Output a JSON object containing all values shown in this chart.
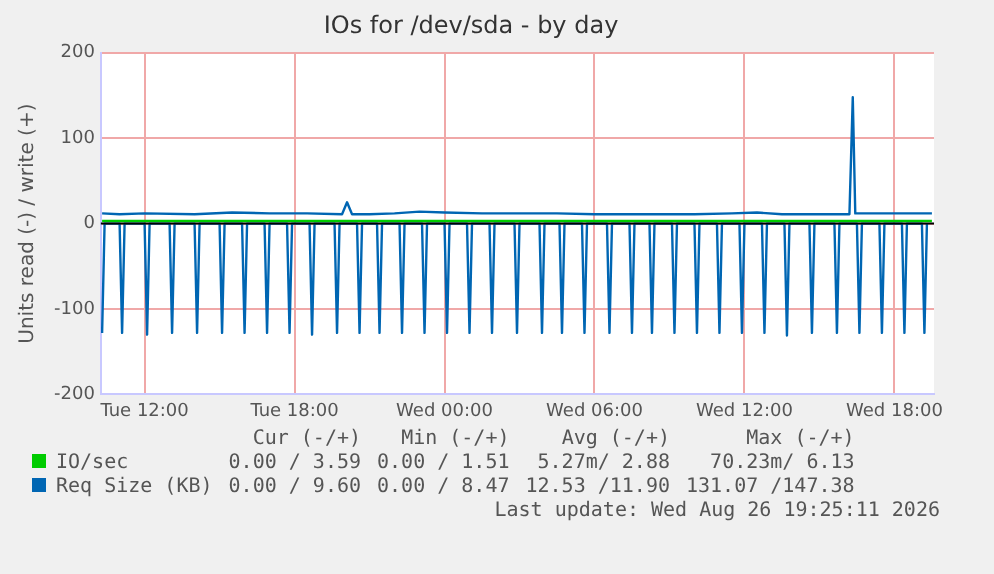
{
  "chart_data": {
    "type": "line",
    "title": "IOs for /dev/sda - by day",
    "ylabel": "Units read (-) / write (+)",
    "xlim": [
      "2026-08-25T10:15",
      "2026-08-26T19:35"
    ],
    "xticks": [
      {
        "value": "2026-08-25T12:00",
        "label": "Tue 12:00"
      },
      {
        "value": "2026-08-25T18:00",
        "label": "Tue 18:00"
      },
      {
        "value": "2026-08-26T00:00",
        "label": "Wed 00:00"
      },
      {
        "value": "2026-08-26T06:00",
        "label": "Wed 06:00"
      },
      {
        "value": "2026-08-26T12:00",
        "label": "Wed 12:00"
      },
      {
        "value": "2026-08-26T18:00",
        "label": "Wed 18:00"
      }
    ],
    "ylim": [
      -200,
      200
    ],
    "yticks": [
      -200,
      -100,
      0,
      100,
      200
    ],
    "grid": true,
    "legend": "bottom",
    "marker": "none",
    "line_style": "solid",
    "ref_lines": [
      {
        "axis": "y",
        "value": 0,
        "color": "#000000"
      }
    ],
    "series": [
      {
        "name": "IO/sec",
        "color": "#00cc00",
        "x": [
          "2026-08-25T10:18",
          "2026-08-25T15:00",
          "2026-08-25T20:00",
          "2026-08-26T01:00",
          "2026-08-26T06:00",
          "2026-08-26T11:00",
          "2026-08-26T16:00",
          "2026-08-26T19:30"
        ],
        "values": [
          3,
          3,
          3,
          3,
          3,
          3,
          3,
          3
        ]
      },
      {
        "color": "#0066b3",
        "x": [
          "2026-08-25T10:18",
          "2026-08-25T10:24",
          "2026-08-25T11:00",
          "2026-08-25T11:06",
          "2026-08-25T11:12",
          "2026-08-25T12:00",
          "2026-08-25T12:06",
          "2026-08-25T12:12",
          "2026-08-25T13:00",
          "2026-08-25T13:06",
          "2026-08-25T13:12",
          "2026-08-25T14:00",
          "2026-08-25T14:06",
          "2026-08-25T14:12",
          "2026-08-25T15:00",
          "2026-08-25T15:06",
          "2026-08-25T15:12",
          "2026-08-25T15:54",
          "2026-08-25T16:00",
          "2026-08-25T16:06",
          "2026-08-25T16:48",
          "2026-08-25T16:54",
          "2026-08-25T17:00",
          "2026-08-25T17:42",
          "2026-08-25T17:48",
          "2026-08-25T17:54",
          "2026-08-25T18:36",
          "2026-08-25T18:42",
          "2026-08-25T18:48",
          "2026-08-25T19:36",
          "2026-08-25T19:42",
          "2026-08-25T19:48",
          "2026-08-25T20:30",
          "2026-08-25T20:36",
          "2026-08-25T20:42",
          "2026-08-25T21:18",
          "2026-08-25T21:24",
          "2026-08-25T21:30",
          "2026-08-25T22:12",
          "2026-08-25T22:18",
          "2026-08-25T22:24",
          "2026-08-25T23:06",
          "2026-08-25T23:12",
          "2026-08-25T23:18",
          "2026-08-26T00:00",
          "2026-08-26T00:06",
          "2026-08-26T00:12",
          "2026-08-26T00:54",
          "2026-08-26T01:00",
          "2026-08-26T01:06",
          "2026-08-26T01:48",
          "2026-08-26T01:54",
          "2026-08-26T02:00",
          "2026-08-26T02:48",
          "2026-08-26T02:54",
          "2026-08-26T03:00",
          "2026-08-26T03:48",
          "2026-08-26T03:54",
          "2026-08-26T04:00",
          "2026-08-26T04:36",
          "2026-08-26T04:42",
          "2026-08-26T04:48",
          "2026-08-26T05:30",
          "2026-08-26T05:36",
          "2026-08-26T05:42",
          "2026-08-26T06:30",
          "2026-08-26T06:36",
          "2026-08-26T06:42",
          "2026-08-26T07:24",
          "2026-08-26T07:30",
          "2026-08-26T07:36",
          "2026-08-26T08:12",
          "2026-08-26T08:18",
          "2026-08-26T08:24",
          "2026-08-26T09:06",
          "2026-08-26T09:12",
          "2026-08-26T09:18",
          "2026-08-26T10:00",
          "2026-08-26T10:06",
          "2026-08-26T10:12",
          "2026-08-26T10:54",
          "2026-08-26T11:00",
          "2026-08-26T11:06",
          "2026-08-26T11:48",
          "2026-08-26T11:54",
          "2026-08-26T12:00",
          "2026-08-26T12:42",
          "2026-08-26T12:48",
          "2026-08-26T12:54",
          "2026-08-26T13:36",
          "2026-08-26T13:42",
          "2026-08-26T13:48",
          "2026-08-26T14:36",
          "2026-08-26T14:42",
          "2026-08-26T14:48",
          "2026-08-26T15:36",
          "2026-08-26T15:42",
          "2026-08-26T15:48",
          "2026-08-26T16:30",
          "2026-08-26T16:36",
          "2026-08-26T16:42",
          "2026-08-26T17:24",
          "2026-08-26T17:30",
          "2026-08-26T17:36",
          "2026-08-26T18:18",
          "2026-08-26T18:24",
          "2026-08-26T18:30",
          "2026-08-26T19:06",
          "2026-08-26T19:12",
          "2026-08-26T19:18"
        ],
        "values": [
          -128,
          0,
          0,
          -128,
          0,
          0,
          -130,
          0,
          0,
          -128,
          0,
          0,
          -128,
          0,
          0,
          -128,
          0,
          0,
          -128,
          0,
          0,
          -128,
          0,
          0,
          -128,
          0,
          0,
          -130,
          0,
          0,
          -128,
          0,
          0,
          -128,
          0,
          0,
          -128,
          0,
          0,
          -128,
          0,
          0,
          -128,
          0,
          0,
          -128,
          0,
          0,
          -128,
          0,
          0,
          -128,
          0,
          0,
          -128,
          0,
          0,
          -128,
          0,
          0,
          -128,
          0,
          0,
          -128,
          0,
          0,
          -128,
          0,
          0,
          -128,
          0,
          0,
          -128,
          0,
          0,
          -128,
          0,
          0,
          -128,
          0,
          0,
          -128,
          0,
          0,
          -128,
          0,
          0,
          -128,
          0,
          0,
          -131,
          0,
          0,
          -128,
          0,
          0,
          -128,
          0,
          0,
          -128,
          0,
          0,
          -128,
          0,
          0,
          -128,
          0,
          0,
          -128,
          0
        ]
      },
      {
        "name": "Req Size (KB)",
        "color": "#0066b3",
        "x": [
          "2026-08-25T10:18",
          "2026-08-25T11:00",
          "2026-08-25T12:00",
          "2026-08-25T14:00",
          "2026-08-25T15:30",
          "2026-08-25T17:00",
          "2026-08-25T18:30",
          "2026-08-25T19:54",
          "2026-08-25T20:06",
          "2026-08-25T20:18",
          "2026-08-25T21:00",
          "2026-08-25T22:00",
          "2026-08-25T23:00",
          "2026-08-26T00:00",
          "2026-08-26T01:30",
          "2026-08-26T03:00",
          "2026-08-26T04:30",
          "2026-08-26T06:00",
          "2026-08-26T08:00",
          "2026-08-26T10:00",
          "2026-08-26T11:30",
          "2026-08-26T12:30",
          "2026-08-26T13:30",
          "2026-08-26T15:00",
          "2026-08-26T16:12",
          "2026-08-26T16:20",
          "2026-08-26T16:26",
          "2026-08-26T17:30",
          "2026-08-26T19:30"
        ],
        "values": [
          12,
          11,
          12,
          11,
          13,
          12,
          12,
          11,
          25,
          11,
          11,
          12,
          14,
          13,
          12,
          12,
          12,
          11,
          11,
          11,
          12,
          13,
          11,
          11,
          11,
          148,
          12,
          12,
          12
        ]
      }
    ],
    "annotations": [
      "Cur (-/+)",
      "Min (-/+)",
      "Avg (-/+)",
      "Max (-/+)",
      "0.00 / 3.59",
      "0.00 / 1.51",
      "5.27m/ 2.88",
      "70.23m/ 6.13",
      "0.00 / 9.60",
      "0.00 / 8.47",
      "12.53 /11.90",
      "131.07 /147.38",
      "Last update: Wed Aug 26 19:25:11 2026"
    ]
  }
}
